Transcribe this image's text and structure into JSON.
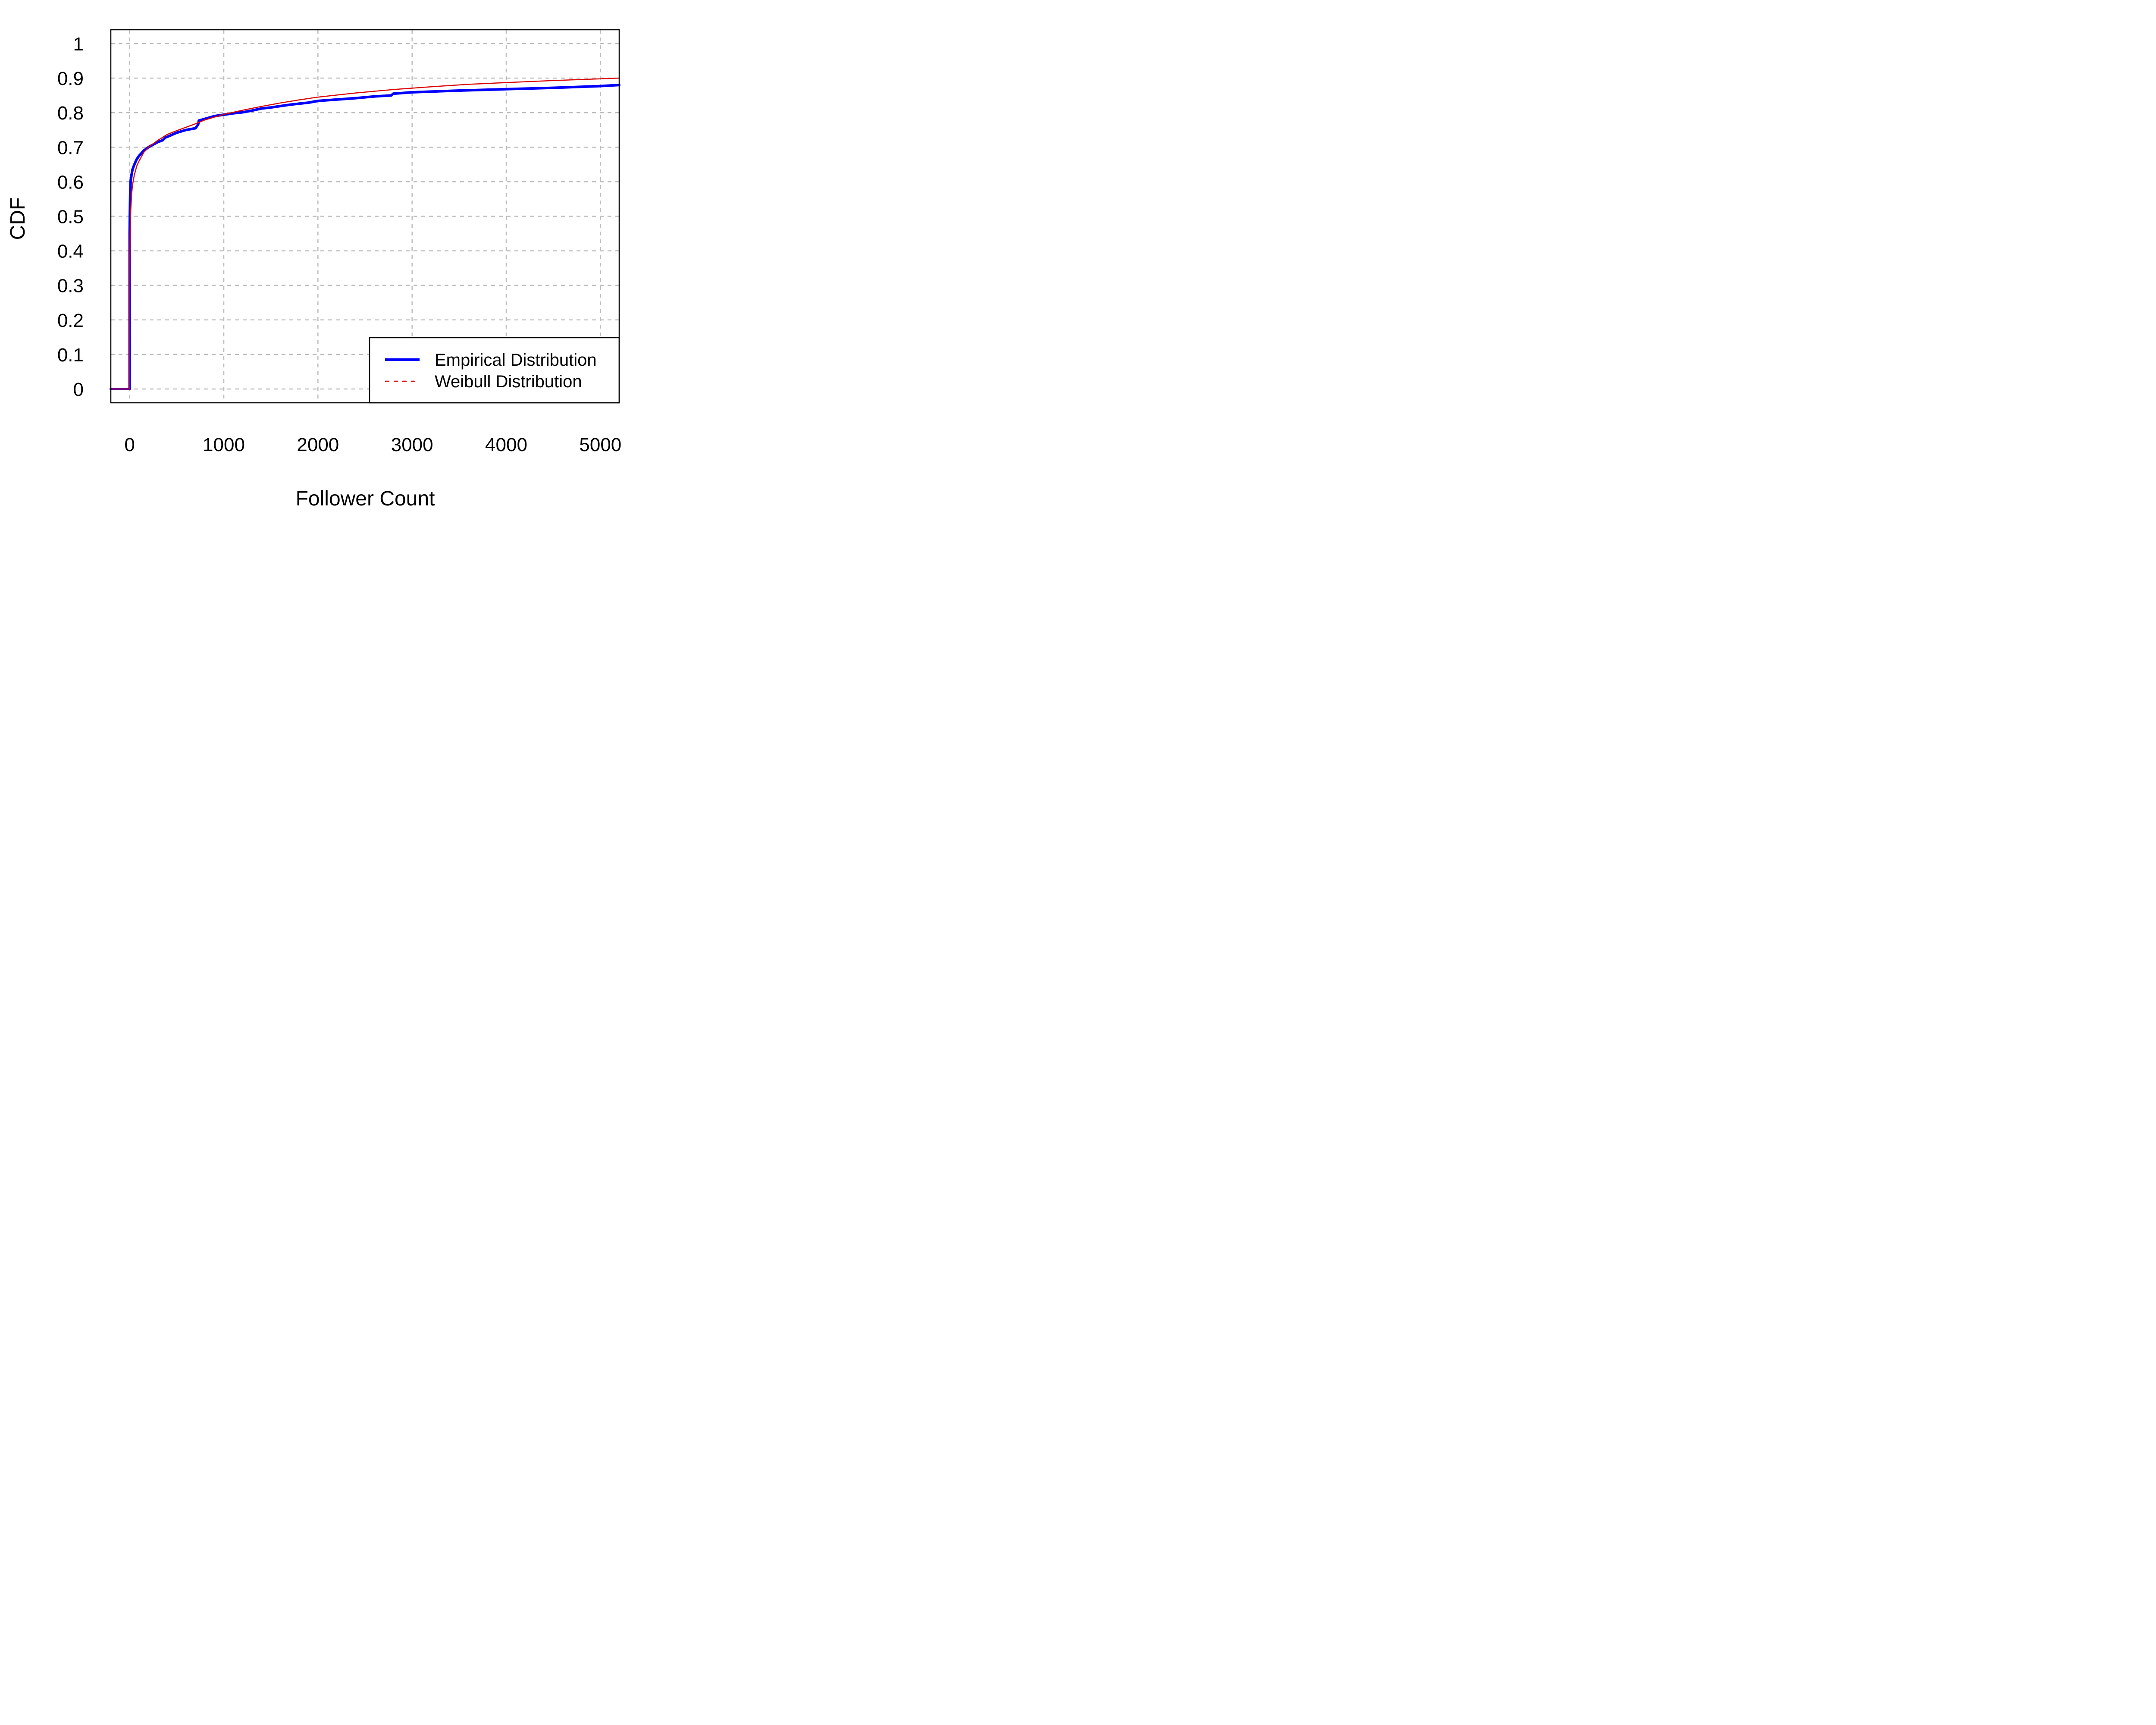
{
  "chart_data": {
    "type": "line",
    "title": "",
    "xlabel": "Follower Count",
    "ylabel": "CDF",
    "xlim": [
      -200,
      5200
    ],
    "ylim": [
      -0.04,
      1.04
    ],
    "xticks": [
      0,
      1000,
      2000,
      3000,
      4000,
      5000
    ],
    "xtick_labels": [
      "0",
      "1000",
      "2000",
      "3000",
      "4000",
      "5000"
    ],
    "yticks": [
      0,
      0.1,
      0.2,
      0.3,
      0.4,
      0.5,
      0.6,
      0.7,
      0.8,
      0.9,
      1
    ],
    "ytick_labels": [
      "0",
      "0.1",
      "0.2",
      "0.3",
      "0.4",
      "0.5",
      "0.6",
      "0.7",
      "0.8",
      "0.9",
      "1"
    ],
    "grid": true,
    "legend_position": "bottom-right",
    "series": [
      {
        "name": "Empirical Distribution",
        "color": "#0000ff",
        "style": "solid",
        "x": [
          -200,
          0,
          0,
          2,
          5,
          10,
          20,
          30,
          50,
          75,
          100,
          150,
          200,
          300,
          350,
          380,
          400,
          500,
          600,
          700,
          720,
          730,
          735,
          800,
          900,
          1000,
          1100,
          1200,
          1300,
          1400,
          1500,
          1600,
          1700,
          1800,
          1900,
          2000,
          2200,
          2400,
          2600,
          2780,
          2800,
          3000,
          3500,
          4000,
          4500,
          5000,
          5200
        ],
        "y": [
          0,
          0,
          0.45,
          0.5,
          0.56,
          0.6,
          0.62,
          0.635,
          0.65,
          0.665,
          0.675,
          0.69,
          0.7,
          0.715,
          0.72,
          0.728,
          0.73,
          0.742,
          0.75,
          0.755,
          0.763,
          0.768,
          0.777,
          0.782,
          0.79,
          0.794,
          0.798,
          0.801,
          0.806,
          0.812,
          0.815,
          0.819,
          0.823,
          0.826,
          0.829,
          0.834,
          0.838,
          0.842,
          0.847,
          0.85,
          0.855,
          0.859,
          0.864,
          0.868,
          0.872,
          0.877,
          0.88
        ]
      },
      {
        "name": "Weibull Distribution",
        "color": "#dd0000",
        "style": "dashed",
        "x": [
          -200,
          0,
          1,
          3,
          6,
          10,
          20,
          30,
          50,
          75,
          100,
          150,
          200,
          300,
          400,
          500,
          600,
          700,
          800,
          900,
          1000,
          1200,
          1400,
          1600,
          1800,
          2000,
          2400,
          2800,
          3200,
          3600,
          4000,
          4500,
          5000,
          5200
        ],
        "y": [
          0,
          0,
          0.28,
          0.4,
          0.47,
          0.51,
          0.56,
          0.59,
          0.62,
          0.645,
          0.66,
          0.685,
          0.7,
          0.72,
          0.737,
          0.748,
          0.758,
          0.768,
          0.779,
          0.787,
          0.795,
          0.807,
          0.818,
          0.828,
          0.837,
          0.845,
          0.857,
          0.867,
          0.875,
          0.882,
          0.887,
          0.893,
          0.898,
          0.9
        ]
      }
    ]
  }
}
